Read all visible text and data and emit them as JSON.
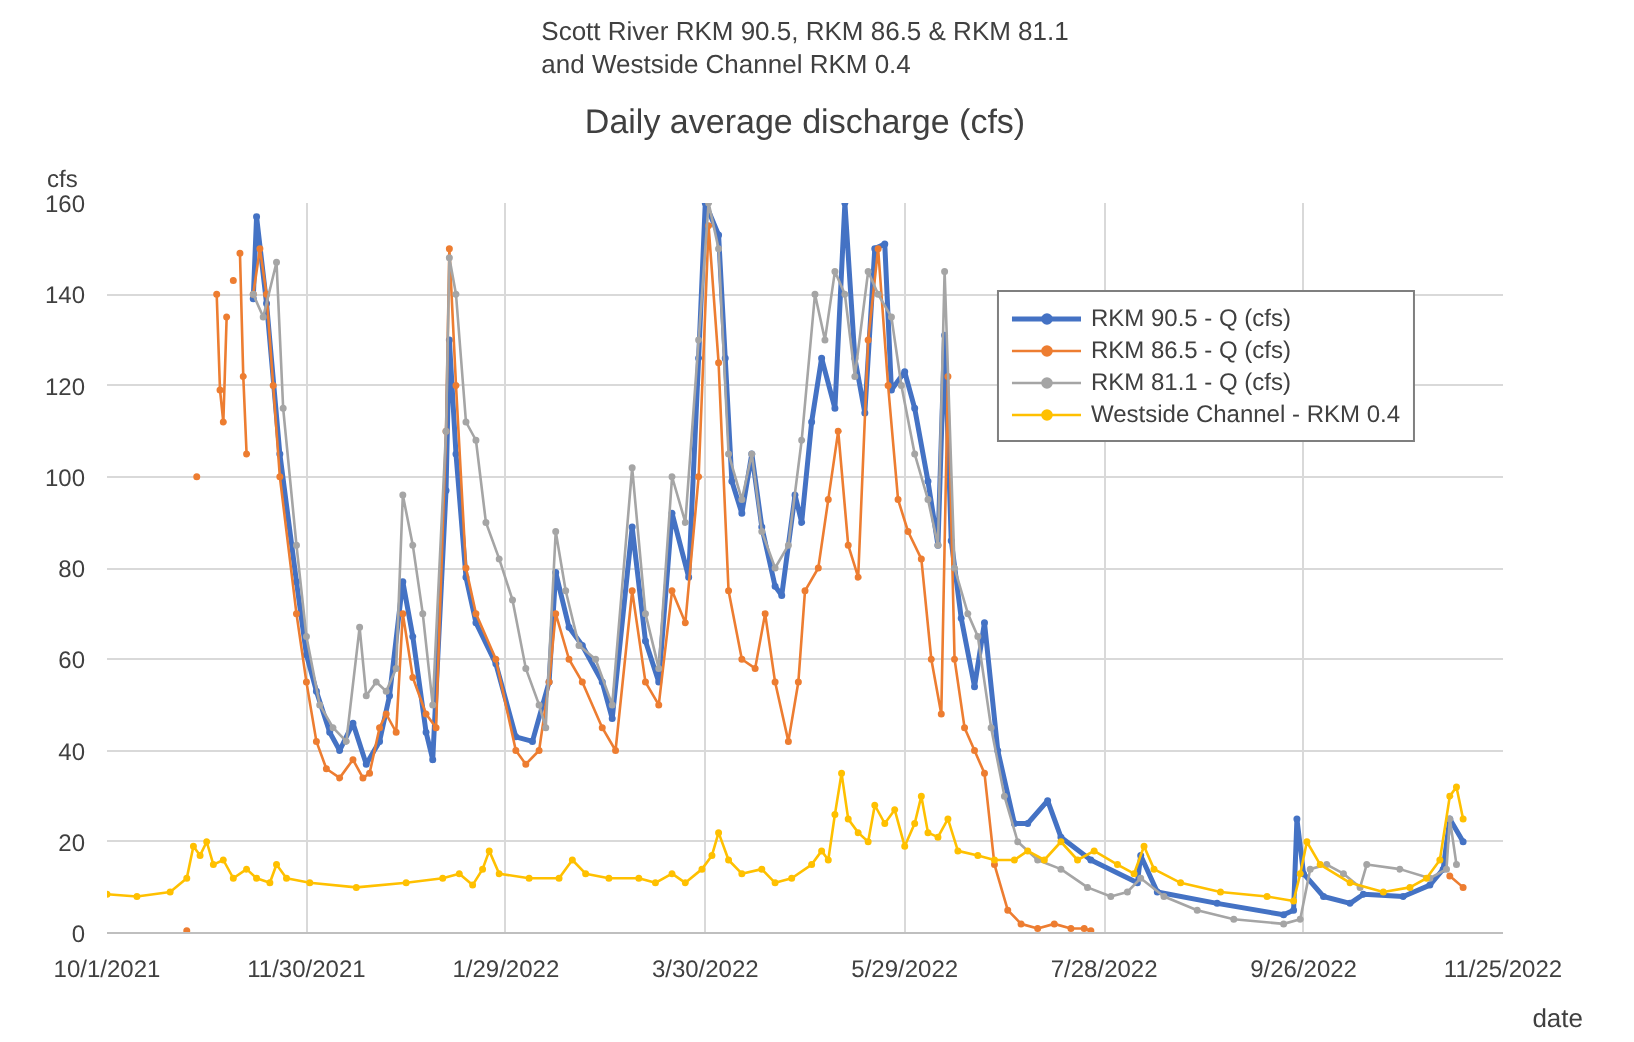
{
  "chart_data": {
    "type": "line",
    "title": "Scott River RKM 90.5, RKM 86.5 & RKM 81.1\nand Westside Channel RKM 0.4",
    "subtitle": "Daily average discharge (cfs)",
    "xlabel": "date",
    "ylabel": "cfs",
    "xlim": [
      "2021-10-01",
      "2022-11-25"
    ],
    "xticks": [
      {
        "value": "2021-10-01",
        "label": "10/1/2021"
      },
      {
        "value": "2021-11-30",
        "label": "11/30/2021"
      },
      {
        "value": "2022-01-29",
        "label": "1/29/2022"
      },
      {
        "value": "2022-03-30",
        "label": "3/30/2022"
      },
      {
        "value": "2022-05-29",
        "label": "5/29/2022"
      },
      {
        "value": "2022-07-28",
        "label": "7/28/2022"
      },
      {
        "value": "2022-09-26",
        "label": "9/26/2022"
      },
      {
        "value": "2022-11-25",
        "label": "11/25/2022"
      }
    ],
    "ylim": [
      0,
      160
    ],
    "yticks": [
      0,
      20,
      40,
      60,
      80,
      100,
      120,
      140,
      160
    ],
    "grid": true,
    "legend": "top right",
    "marker": "circle",
    "line_style": "solid",
    "series": [
      {
        "name": "RKM 90.5 - Q (cfs)",
        "color": "#4472c4",
        "x": [
          "2021-11-14",
          "2021-11-15",
          "2021-11-18",
          "2021-11-22",
          "2021-11-27",
          "2021-11-30",
          "2021-12-03",
          "2021-12-07",
          "2021-12-10",
          "2021-12-14",
          "2021-12-18",
          "2021-12-22",
          "2021-12-25",
          "2021-12-29",
          "2022-01-01",
          "2022-01-05",
          "2022-01-07",
          "2022-01-11",
          "2022-01-12",
          "2022-01-14",
          "2022-01-17",
          "2022-01-20",
          "2022-01-26",
          "2022-02-01",
          "2022-02-06",
          "2022-02-11",
          "2022-02-13",
          "2022-02-17",
          "2022-02-21",
          "2022-02-27",
          "2022-03-02",
          "2022-03-08",
          "2022-03-12",
          "2022-03-16",
          "2022-03-20",
          "2022-03-25",
          "2022-03-28",
          "2022-03-30",
          "2022-04-03",
          "2022-04-05",
          "2022-04-07",
          "2022-04-10",
          "2022-04-13",
          "2022-04-16",
          "2022-04-20",
          "2022-04-22",
          "2022-04-26",
          "2022-04-28",
          "2022-05-01",
          "2022-05-04",
          "2022-05-08",
          "2022-05-11",
          "2022-05-14",
          "2022-05-17",
          "2022-05-20",
          "2022-05-23",
          "2022-05-25",
          "2022-05-29",
          "2022-06-01",
          "2022-06-05",
          "2022-06-08",
          "2022-06-10",
          "2022-06-12",
          "2022-06-15",
          "2022-06-19",
          "2022-06-22",
          "2022-06-26",
          "2022-07-01",
          "2022-07-05",
          "2022-07-11",
          "2022-07-15",
          "2022-07-24",
          "2022-08-07",
          "2022-08-08",
          "2022-08-13",
          "2022-08-31",
          "2022-09-20",
          "2022-09-23",
          "2022-09-24",
          "2022-09-26",
          "2022-10-02",
          "2022-10-10",
          "2022-10-14",
          "2022-10-26",
          "2022-11-03",
          "2022-11-07",
          "2022-11-09",
          "2022-11-13"
        ],
        "values": [
          139,
          157,
          138,
          105,
          77,
          61,
          53,
          44,
          40,
          46,
          37,
          42,
          52,
          77,
          65,
          44,
          38,
          97,
          130,
          105,
          78,
          68,
          59,
          43,
          42,
          55,
          79,
          67,
          63,
          55,
          47,
          89,
          64,
          55,
          92,
          78,
          126,
          160,
          153,
          126,
          99,
          92,
          105,
          89,
          76,
          74,
          96,
          90,
          112,
          126,
          115,
          160,
          126,
          114,
          150,
          151,
          119,
          123,
          115,
          99,
          85,
          131,
          86,
          69,
          54,
          68,
          40,
          24,
          24,
          29,
          21,
          16,
          11,
          17,
          9,
          6.5,
          4,
          5,
          25,
          13,
          8,
          6.5,
          8.5,
          8,
          10.5,
          14,
          25,
          20
        ]
      },
      {
        "name": "RKM 86.5 - Q (cfs)",
        "color": "#ed7d31",
        "x": [
          "2021-10-25",
          "2021-10-26",
          "2021-10-28",
          "2021-10-29",
          "2021-11-03",
          "2021-11-04",
          "2021-11-05",
          "2021-11-06",
          "2021-11-07",
          "2021-11-08",
          "2021-11-09",
          "2021-11-10",
          "2021-11-11",
          "2021-11-12",
          "2021-11-13",
          "2021-11-14",
          "2021-11-16",
          "2021-11-18",
          "2021-11-20",
          "2021-11-22",
          "2021-11-27",
          "2021-11-30",
          "2021-12-03",
          "2021-12-06",
          "2021-12-10",
          "2021-12-14",
          "2021-12-17",
          "2021-12-19",
          "2021-12-22",
          "2021-12-24",
          "2021-12-27",
          "2021-12-29",
          "2022-01-01",
          "2022-01-05",
          "2022-01-08",
          "2022-01-11",
          "2022-01-12",
          "2022-01-14",
          "2022-01-17",
          "2022-01-20",
          "2022-01-26",
          "2022-02-01",
          "2022-02-04",
          "2022-02-08",
          "2022-02-11",
          "2022-02-13",
          "2022-02-17",
          "2022-02-21",
          "2022-02-27",
          "2022-03-03",
          "2022-03-08",
          "2022-03-12",
          "2022-03-16",
          "2022-03-20",
          "2022-03-24",
          "2022-03-28",
          "2022-03-31",
          "2022-04-03",
          "2022-04-06",
          "2022-04-10",
          "2022-04-14",
          "2022-04-17",
          "2022-04-20",
          "2022-04-24",
          "2022-04-27",
          "2022-04-29",
          "2022-05-03",
          "2022-05-06",
          "2022-05-09",
          "2022-05-12",
          "2022-05-15",
          "2022-05-18",
          "2022-05-21",
          "2022-05-24",
          "2022-05-27",
          "2022-05-30",
          "2022-06-03",
          "2022-06-06",
          "2022-06-09",
          "2022-06-11",
          "2022-06-13",
          "2022-06-16",
          "2022-06-19",
          "2022-06-22",
          "2022-06-25",
          "2022-06-29",
          "2022-07-03",
          "2022-07-08",
          "2022-07-13",
          "2022-07-18",
          "2022-07-22",
          "2022-07-24",
          "2022-11-08",
          "2022-11-09",
          "2022-11-13"
        ],
        "values": [
          0.5,
          null,
          100,
          null,
          140,
          119,
          112,
          135,
          null,
          143,
          null,
          149,
          122,
          105,
          null,
          140,
          150,
          140,
          120,
          100,
          70,
          55,
          42,
          36,
          34,
          38,
          34,
          35,
          45,
          48,
          44,
          70,
          56,
          48,
          45,
          110,
          150,
          120,
          80,
          70,
          60,
          40,
          37,
          40,
          55,
          70,
          60,
          55,
          45,
          40,
          75,
          55,
          50,
          75,
          68,
          100,
          155,
          125,
          75,
          60,
          58,
          70,
          55,
          42,
          55,
          75,
          80,
          95,
          110,
          85,
          78,
          130,
          150,
          120,
          95,
          88,
          82,
          60,
          48,
          122,
          60,
          45,
          40,
          35,
          15,
          5,
          2,
          1,
          2,
          1,
          1,
          0.5,
          null,
          12.5,
          10
        ]
      },
      {
        "name": "RKM 81.1 - Q (cfs)",
        "color": "#a5a5a5",
        "x": [
          "2021-11-14",
          "2021-11-17",
          "2021-11-21",
          "2021-11-23",
          "2021-11-27",
          "2021-11-30",
          "2021-12-04",
          "2021-12-08",
          "2021-12-12",
          "2021-12-16",
          "2021-12-18",
          "2021-12-21",
          "2021-12-24",
          "2021-12-27",
          "2021-12-29",
          "2022-01-01",
          "2022-01-04",
          "2022-01-07",
          "2022-01-11",
          "2022-01-12",
          "2022-01-14",
          "2022-01-17",
          "2022-01-20",
          "2022-01-23",
          "2022-01-27",
          "2022-01-31",
          "2022-02-04",
          "2022-02-08",
          "2022-02-10",
          "2022-02-13",
          "2022-02-16",
          "2022-02-20",
          "2022-02-25",
          "2022-03-02",
          "2022-03-08",
          "2022-03-12",
          "2022-03-16",
          "2022-03-20",
          "2022-03-24",
          "2022-03-28",
          "2022-03-31",
          "2022-04-03",
          "2022-04-06",
          "2022-04-10",
          "2022-04-13",
          "2022-04-16",
          "2022-04-20",
          "2022-04-24",
          "2022-04-28",
          "2022-05-02",
          "2022-05-05",
          "2022-05-08",
          "2022-05-11",
          "2022-05-14",
          "2022-05-18",
          "2022-05-21",
          "2022-05-25",
          "2022-05-28",
          "2022-06-01",
          "2022-06-05",
          "2022-06-08",
          "2022-06-10",
          "2022-06-13",
          "2022-06-17",
          "2022-06-20",
          "2022-06-24",
          "2022-06-28",
          "2022-07-02",
          "2022-07-08",
          "2022-07-15",
          "2022-07-23",
          "2022-07-30",
          "2022-08-04",
          "2022-08-08",
          "2022-08-15",
          "2022-08-25",
          "2022-09-05",
          "2022-09-20",
          "2022-09-25",
          "2022-09-28",
          "2022-10-03",
          "2022-10-08",
          "2022-10-13",
          "2022-10-15",
          "2022-10-25",
          "2022-11-03",
          "2022-11-08",
          "2022-11-09",
          "2022-11-11"
        ],
        "values": [
          140,
          135,
          147,
          115,
          85,
          65,
          50,
          45,
          42,
          67,
          52,
          55,
          53,
          58,
          96,
          85,
          70,
          50,
          110,
          148,
          140,
          112,
          108,
          90,
          82,
          73,
          58,
          50,
          45,
          88,
          75,
          63,
          60,
          50,
          102,
          70,
          58,
          100,
          90,
          130,
          160,
          150,
          105,
          95,
          105,
          88,
          80,
          85,
          108,
          140,
          130,
          145,
          140,
          122,
          145,
          140,
          135,
          120,
          105,
          95,
          85,
          145,
          80,
          70,
          65,
          45,
          30,
          20,
          16,
          14,
          10,
          8,
          9,
          12,
          8,
          5,
          3,
          2,
          3,
          14,
          15,
          13,
          10,
          15,
          14,
          12,
          14,
          25,
          15
        ]
      },
      {
        "name": "Westside Channel - RKM 0.4",
        "color": "#ffc000",
        "x": [
          "2021-10-01",
          "2021-10-10",
          "2021-10-20",
          "2021-10-25",
          "2021-10-27",
          "2021-10-29",
          "2021-10-31",
          "2021-11-02",
          "2021-11-05",
          "2021-11-08",
          "2021-11-12",
          "2021-11-15",
          "2021-11-19",
          "2021-11-21",
          "2021-11-24",
          "2021-12-01",
          "2021-12-15",
          "2021-12-30",
          "2022-01-10",
          "2022-01-15",
          "2022-01-19",
          "2022-01-22",
          "2022-01-24",
          "2022-01-27",
          "2022-02-05",
          "2022-02-14",
          "2022-02-18",
          "2022-02-22",
          "2022-03-01",
          "2022-03-10",
          "2022-03-15",
          "2022-03-20",
          "2022-03-24",
          "2022-03-29",
          "2022-04-01",
          "2022-04-03",
          "2022-04-06",
          "2022-04-10",
          "2022-04-16",
          "2022-04-20",
          "2022-04-25",
          "2022-05-01",
          "2022-05-04",
          "2022-05-06",
          "2022-05-08",
          "2022-05-10",
          "2022-05-12",
          "2022-05-15",
          "2022-05-18",
          "2022-05-20",
          "2022-05-23",
          "2022-05-26",
          "2022-05-29",
          "2022-06-01",
          "2022-06-03",
          "2022-06-05",
          "2022-06-08",
          "2022-06-11",
          "2022-06-14",
          "2022-06-20",
          "2022-06-25",
          "2022-07-01",
          "2022-07-05",
          "2022-07-10",
          "2022-07-15",
          "2022-07-20",
          "2022-07-25",
          "2022-08-01",
          "2022-08-06",
          "2022-08-09",
          "2022-08-12",
          "2022-08-20",
          "2022-09-01",
          "2022-09-15",
          "2022-09-23",
          "2022-09-25",
          "2022-09-27",
          "2022-10-01",
          "2022-10-10",
          "2022-10-20",
          "2022-10-28",
          "2022-11-02",
          "2022-11-06",
          "2022-11-09",
          "2022-11-11",
          "2022-11-13"
        ],
        "values": [
          8.5,
          8,
          9,
          12,
          19,
          17,
          20,
          15,
          16,
          12,
          14,
          12,
          11,
          15,
          12,
          11,
          10,
          11,
          12,
          13,
          10.5,
          14,
          18,
          13,
          12,
          12,
          16,
          13,
          12,
          12,
          11,
          13,
          11,
          14,
          17,
          22,
          16,
          13,
          14,
          11,
          12,
          15,
          18,
          16,
          26,
          35,
          25,
          22,
          20,
          28,
          24,
          27,
          19,
          24,
          30,
          22,
          21,
          25,
          18,
          17,
          16,
          16,
          18,
          16,
          20,
          16,
          18,
          15,
          13,
          19,
          14,
          11,
          9,
          8,
          7,
          13,
          20,
          15,
          11,
          9,
          10,
          12,
          16,
          30,
          32,
          25
        ]
      }
    ]
  }
}
